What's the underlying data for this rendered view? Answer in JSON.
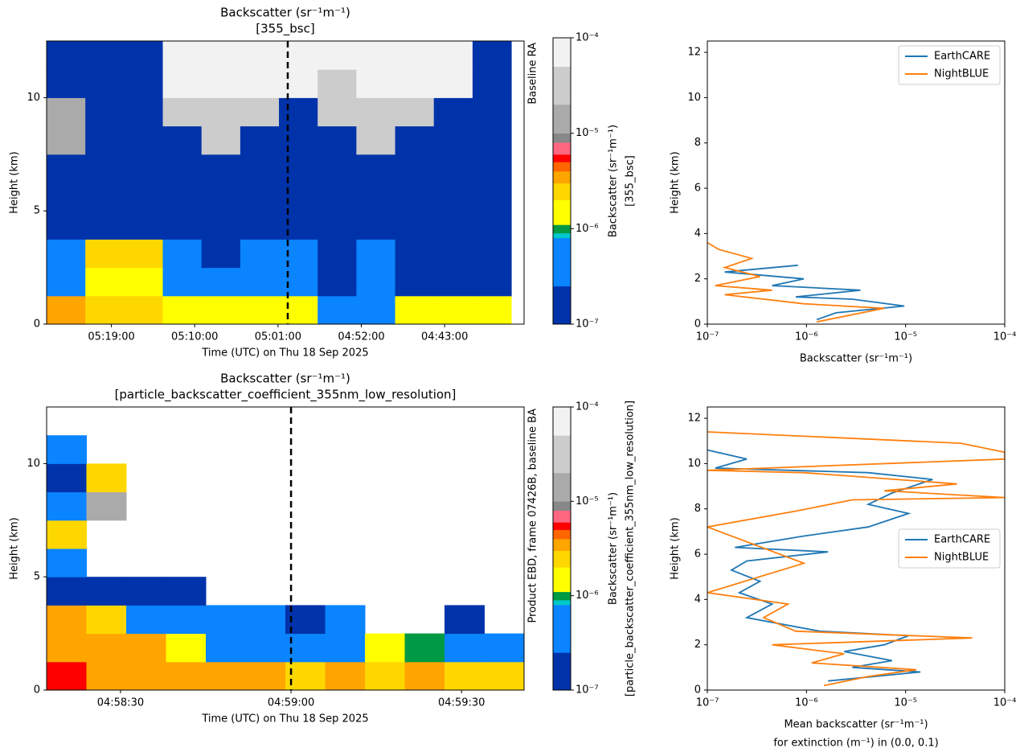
{
  "chart_data": [
    {
      "type": "heatmap",
      "title": [
        "Backscatter (sr⁻¹m⁻¹)",
        "[355_bsc]"
      ],
      "xlabel": "Time (UTC) on Thu 18 Sep 2025",
      "ylabel": "Height (km)",
      "side_label": "Baseline RA",
      "xlim": [
        19560,
        16465
      ],
      "xticks": [
        {
          "value": 19140,
          "label": "05:19:00"
        },
        {
          "value": 18600,
          "label": "05:10:00"
        },
        {
          "value": 18060,
          "label": "05:01:00"
        },
        {
          "value": 17520,
          "label": "04:52:00"
        },
        {
          "value": 16980,
          "label": "04:43:00"
        }
      ],
      "ylim": [
        0,
        12.5
      ],
      "yticks": [
        0,
        5,
        10
      ],
      "vline_x": 17997,
      "xbins": [
        19560,
        19309,
        19058,
        18807,
        18556,
        18305,
        18054,
        17803,
        17552,
        17301,
        17050,
        16799,
        16548
      ],
      "ybins": [
        0,
        1.25,
        2.5,
        3.75,
        5,
        6.25,
        7.5,
        8.75,
        10,
        11.25,
        12.5
      ],
      "z": [
        [
          3e-06,
          2.5e-06,
          2.5e-06,
          1.5e-06,
          1.5e-06,
          1.5e-06,
          1.5e-06,
          5e-07,
          5e-07,
          1.5e-06,
          1.5e-06,
          1.5e-06
        ],
        [
          5e-07,
          1.5e-06,
          1.5e-06,
          5e-07,
          5e-07,
          5e-07,
          5e-07,
          2e-07,
          5e-07,
          2e-07,
          2e-07,
          2e-07
        ],
        [
          5e-07,
          2.5e-06,
          2.5e-06,
          5e-07,
          2e-07,
          5e-07,
          5e-07,
          2e-07,
          5e-07,
          2e-07,
          2e-07,
          2e-07
        ],
        [
          2e-07,
          2e-07,
          2e-07,
          2e-07,
          2e-07,
          2e-07,
          2e-07,
          2e-07,
          2e-07,
          2e-07,
          2e-07,
          2e-07
        ],
        [
          2e-07,
          2e-07,
          2e-07,
          2e-07,
          2e-07,
          2e-07,
          2e-07,
          2e-07,
          2e-07,
          2e-07,
          2e-07,
          2e-07
        ],
        [
          2e-07,
          2e-07,
          2e-07,
          2e-07,
          2e-07,
          2e-07,
          2e-07,
          2e-07,
          2e-07,
          2e-07,
          2e-07,
          2e-07
        ],
        [
          1.5e-05,
          2e-07,
          2e-07,
          2e-07,
          3e-05,
          2e-07,
          2e-07,
          2e-07,
          3e-05,
          2e-07,
          2e-07,
          2e-07
        ],
        [
          1.5e-05,
          2e-07,
          2e-07,
          3e-05,
          3e-05,
          3e-05,
          2e-07,
          3e-05,
          3e-05,
          3e-05,
          2e-07,
          2e-07
        ],
        [
          2e-07,
          2e-07,
          2e-07,
          5e-05,
          5e-05,
          5e-05,
          5e-05,
          3e-05,
          5e-05,
          5e-05,
          5e-05,
          2e-07
        ],
        [
          2e-07,
          2e-07,
          2e-07,
          5e-05,
          5e-05,
          5e-05,
          5e-05,
          5e-05,
          5e-05,
          5e-05,
          5e-05,
          2e-07
        ]
      ],
      "colorbar": {
        "label": [
          "Backscatter (sr⁻¹m⁻¹)",
          "[355_bsc]"
        ],
        "log": true,
        "lim": [
          1e-07,
          0.0001
        ],
        "ticks": [
          {
            "value": 1e-07,
            "label": "10⁻⁷"
          },
          {
            "value": 1e-06,
            "label": "10⁻⁶"
          },
          {
            "value": 1e-05,
            "label": "10⁻⁵"
          },
          {
            "value": 0.0001,
            "label": "10⁻⁴"
          }
        ],
        "bounds": [
          1e-07,
          2.5e-07,
          8e-07,
          9e-07,
          1.1e-06,
          2e-06,
          3e-06,
          4e-06,
          5e-06,
          6e-06,
          8e-06,
          1e-05,
          2e-05,
          5e-05,
          0.0001
        ],
        "colors": [
          "#0033aa",
          "#0a84ff",
          "#00c8c8",
          "#009944",
          "#ffff00",
          "#ffd700",
          "#ffa500",
          "#ff6600",
          "#ff0000",
          "#ff6680",
          "#888888",
          "#aaaaaa",
          "#cccccc",
          "#f2f2f2"
        ]
      }
    },
    {
      "type": "line",
      "xlabel": "Backscatter (sr⁻¹m⁻¹)",
      "ylabel": "Height (km)",
      "xlog": true,
      "xlim": [
        1e-07,
        0.0001
      ],
      "xticks": [
        {
          "value": 1e-07,
          "label": "10⁻⁷"
        },
        {
          "value": 1e-06,
          "label": "10⁻⁶"
        },
        {
          "value": 1e-05,
          "label": "10⁻⁵"
        },
        {
          "value": 0.0001,
          "label": "10⁻⁴"
        }
      ],
      "ylim": [
        0,
        12.5
      ],
      "yticks": [
        0,
        2,
        4,
        6,
        8,
        10,
        12
      ],
      "legend": "upper right",
      "series": [
        {
          "name": "EarthCARE",
          "color": "#1f77b4",
          "x": [
            1.27e-06,
            1.99e-06,
            9.7e-06,
            2.9e-06,
            7.8e-07,
            3.5e-06,
            4.5e-07,
            9.4e-07,
            1.5e-07,
            8.2e-07
          ],
          "values": [
            0.2,
            0.5,
            0.8,
            1.1,
            1.2,
            1.5,
            1.7,
            2.0,
            2.3,
            2.6
          ]
        },
        {
          "name": "NightBLUE",
          "color": "#ff7f0e",
          "x": [
            1.27e-06,
            6.1e-06,
            9.4e-07,
            1.5e-07,
            4.5e-07,
            1.2e-07,
            3.4e-07,
            1.5e-07,
            2.8e-07,
            1.3e-07,
            1e-07
          ],
          "values": [
            0.1,
            0.7,
            0.9,
            1.3,
            1.5,
            1.7,
            2.1,
            2.5,
            2.9,
            3.3,
            3.6
          ]
        }
      ]
    },
    {
      "type": "heatmap",
      "title": [
        "Backscatter (sr⁻¹m⁻¹)",
        "[particle_backscatter_coefficient_355nm_low_resolution]"
      ],
      "xlabel": "Time (UTC) on Thu 18 Sep 2025",
      "ylabel": "Height (km)",
      "side_label": "Product EBD, frame 07426B, baseline BA",
      "xlim": [
        17897,
        17981
      ],
      "xticks": [
        {
          "value": 17910,
          "label": "04:58:30"
        },
        {
          "value": 17940,
          "label": "04:59:00"
        },
        {
          "value": 17970,
          "label": "04:59:30"
        }
      ],
      "ylim": [
        0,
        12.5
      ],
      "yticks": [
        0,
        5,
        10
      ],
      "vline_x": 17940,
      "xbins": [
        17897,
        17904,
        17911,
        17918,
        17925,
        17932,
        17939,
        17946,
        17953,
        17960,
        17967,
        17974,
        17981
      ],
      "ybins": [
        0,
        1.25,
        2.5,
        3.75,
        5,
        6.25,
        7.5,
        8.75,
        10,
        11.25,
        12.5
      ],
      "z": [
        [
          5e-06,
          3e-06,
          3e-06,
          3e-06,
          3e-06,
          3e-06,
          2e-06,
          3e-06,
          2e-06,
          3e-06,
          2e-06,
          2e-06
        ],
        [
          3e-06,
          3e-06,
          3e-06,
          1.5e-06,
          5e-07,
          5e-07,
          5e-07,
          5e-07,
          1.5e-06,
          9.5e-07,
          5e-07,
          5e-07
        ],
        [
          3e-06,
          2.5e-06,
          5e-07,
          5e-07,
          5e-07,
          5e-07,
          2e-07,
          5e-07,
          null,
          null,
          2e-07,
          null
        ],
        [
          2e-07,
          2e-07,
          2e-07,
          2e-07,
          null,
          null,
          null,
          null,
          null,
          null,
          null,
          null
        ],
        [
          5e-07,
          null,
          null,
          null,
          null,
          null,
          null,
          null,
          null,
          null,
          null,
          null
        ],
        [
          2.5e-06,
          null,
          null,
          null,
          null,
          null,
          null,
          null,
          null,
          null,
          null,
          null
        ],
        [
          5e-07,
          1.5e-05,
          null,
          null,
          null,
          null,
          null,
          null,
          null,
          null,
          null,
          null
        ],
        [
          2e-07,
          2.5e-06,
          null,
          null,
          null,
          null,
          null,
          null,
          null,
          null,
          null,
          null
        ],
        [
          5e-07,
          null,
          null,
          null,
          null,
          null,
          null,
          null,
          null,
          null,
          null,
          null
        ],
        [
          null,
          null,
          null,
          null,
          null,
          null,
          null,
          null,
          null,
          null,
          null,
          null
        ]
      ],
      "colorbar": {
        "label": [
          "Backscatter (sr⁻¹m⁻¹)",
          "[particle_backscatter_coefficient_355nm_low_resolution]"
        ],
        "log": true,
        "lim": [
          1e-07,
          0.0001
        ],
        "ticks": [
          {
            "value": 1e-07,
            "label": "10⁻⁷"
          },
          {
            "value": 1e-06,
            "label": "10⁻⁶"
          },
          {
            "value": 1e-05,
            "label": "10⁻⁵"
          },
          {
            "value": 0.0001,
            "label": "10⁻⁴"
          }
        ],
        "bounds": [
          1e-07,
          2.5e-07,
          8e-07,
          9e-07,
          1.1e-06,
          2e-06,
          3e-06,
          4e-06,
          5e-06,
          6e-06,
          8e-06,
          1e-05,
          2e-05,
          5e-05,
          0.0001
        ],
        "colors": [
          "#0033aa",
          "#0a84ff",
          "#00c8c8",
          "#009944",
          "#ffff00",
          "#ffd700",
          "#ffa500",
          "#ff6600",
          "#ff0000",
          "#ff6680",
          "#888888",
          "#aaaaaa",
          "#cccccc",
          "#f2f2f2"
        ]
      }
    },
    {
      "type": "line",
      "xlabel": [
        "Mean backscatter (sr⁻¹m⁻¹)",
        "for extinction (m⁻¹) in (0.0, 0.1)"
      ],
      "ylabel": "Height (km)",
      "xlog": true,
      "xlim": [
        1e-07,
        0.0001
      ],
      "xticks": [
        {
          "value": 1e-07,
          "label": "10⁻⁷"
        },
        {
          "value": 1e-06,
          "label": "10⁻⁶"
        },
        {
          "value": 1e-05,
          "label": "10⁻⁵"
        },
        {
          "value": 0.0001,
          "label": "10⁻⁴"
        }
      ],
      "ylim": [
        0,
        12.5
      ],
      "yticks": [
        0,
        2,
        4,
        6,
        8,
        10,
        12
      ],
      "legend": "center right",
      "series": [
        {
          "name": "EarthCARE",
          "color": "#1f77b4",
          "x": [
            1.65e-06,
            1.41e-05,
            2.9e-06,
            7.3e-06,
            2.4e-06,
            6.1e-06,
            1.07e-05,
            1.36e-06,
            2.5e-07,
            4.5e-07,
            2.1e-07,
            3.4e-07,
            1.75e-07,
            2.5e-07,
            1.65e-06,
            1.9e-07,
            9.4e-07,
            4.2e-06,
            1.07e-05,
            4.2e-06,
            7.3e-06,
            1.87e-05,
            4.2e-06,
            1.2e-07,
            2.5e-07,
            1e-07
          ],
          "values": [
            0.4,
            0.8,
            1.0,
            1.3,
            1.7,
            2.0,
            2.4,
            2.6,
            3.2,
            3.8,
            4.3,
            4.8,
            5.3,
            5.7,
            6.1,
            6.3,
            6.8,
            7.2,
            7.8,
            8.2,
            8.7,
            9.3,
            9.6,
            9.8,
            10.2,
            10.6
          ]
        },
        {
          "name": "NightBLUE",
          "color": "#ff7f0e",
          "x": [
            1.5e-06,
            4.2e-06,
            1.28e-05,
            1.13e-06,
            2.4e-06,
            4.5e-07,
            4.7e-05,
            7.8e-07,
            3.7e-07,
            6.5e-07,
            1e-07,
            9.4e-07,
            1e-07,
            7.8e-07,
            2.9e-06,
            0.0001,
            6.1e-06,
            3.3e-05,
            9.4e-07,
            1e-07,
            0.0001,
            0.0001,
            3.6e-05,
            1e-07
          ],
          "values": [
            0.2,
            0.6,
            0.9,
            1.2,
            1.6,
            2.0,
            2.3,
            2.6,
            3.2,
            3.8,
            4.3,
            5.6,
            7.2,
            7.9,
            8.4,
            8.5,
            8.8,
            9.1,
            9.6,
            9.7,
            10.2,
            10.5,
            10.9,
            11.4
          ]
        }
      ]
    }
  ]
}
